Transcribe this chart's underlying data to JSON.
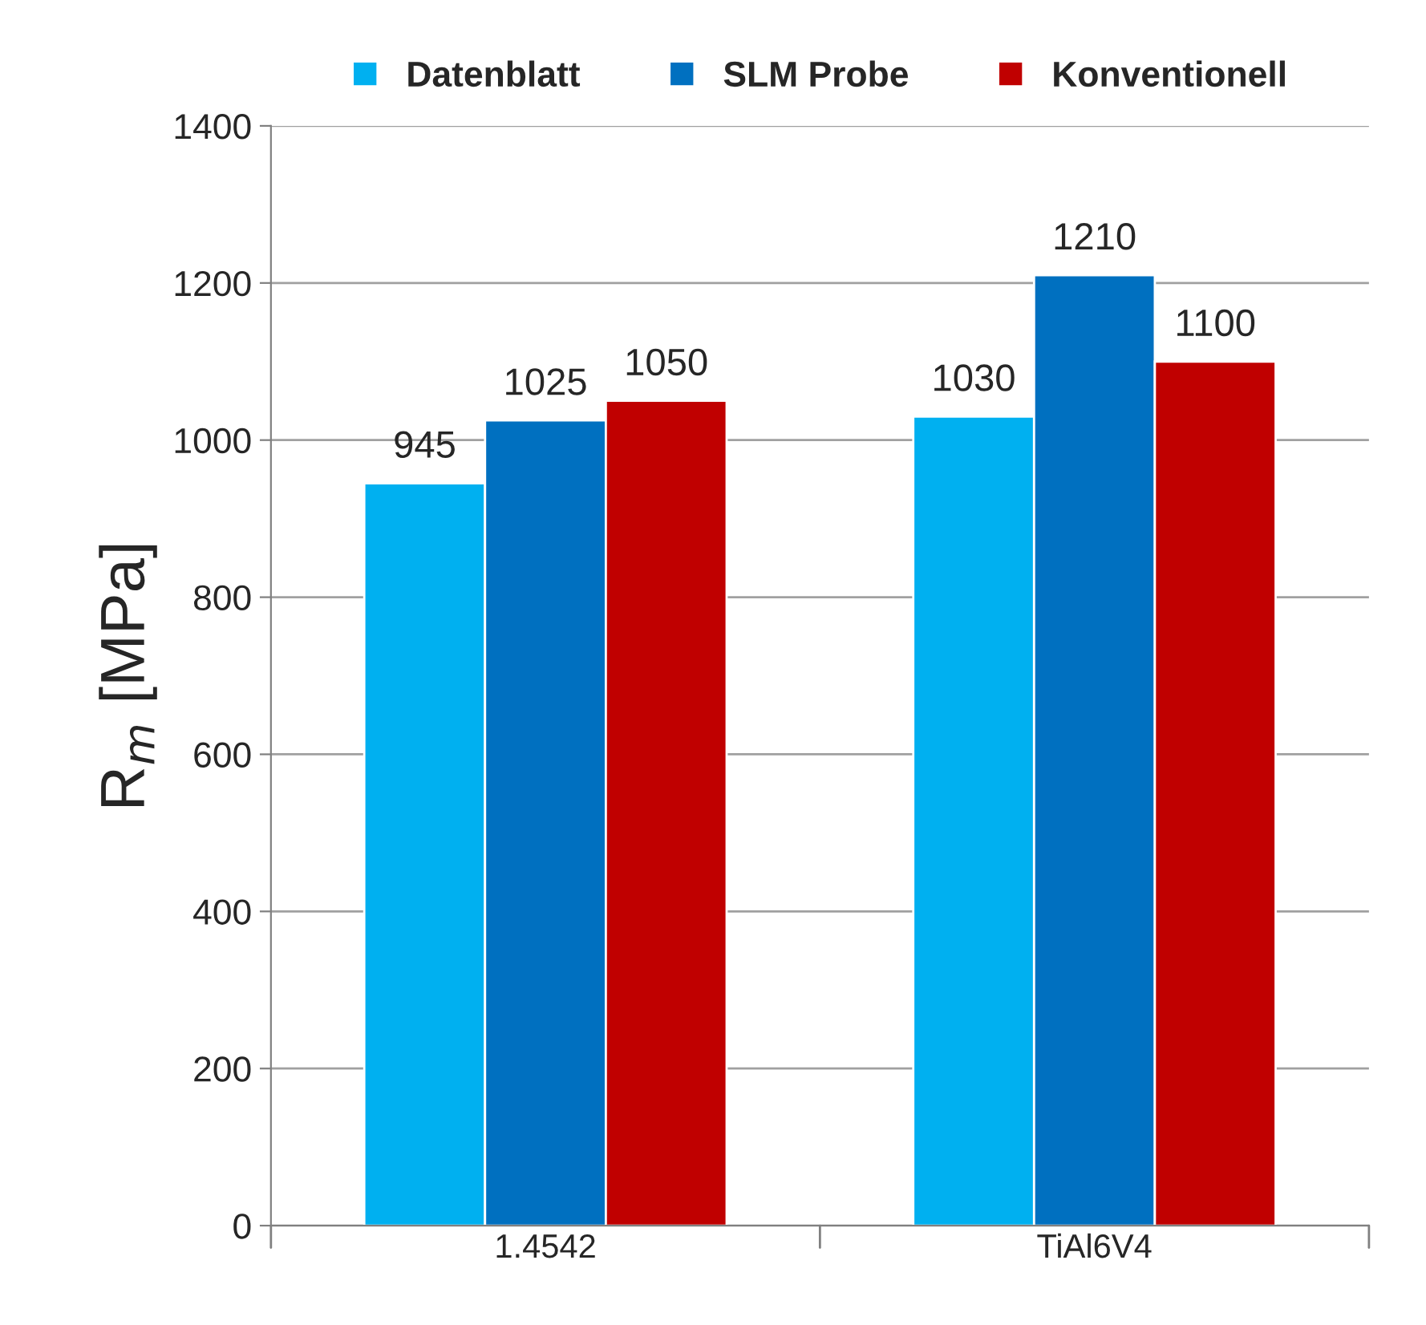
{
  "chart_data": {
    "type": "bar",
    "categories": [
      "1.4542",
      "TiAl6V4"
    ],
    "series": [
      {
        "name": "Datenblatt",
        "color": "#00b0f0",
        "values": [
          945,
          1030
        ]
      },
      {
        "name": "SLM Probe",
        "color": "#0070c0",
        "values": [
          1025,
          1210
        ]
      },
      {
        "name": "Konventionell",
        "color": "#c00000",
        "values": [
          1050,
          1100
        ]
      }
    ],
    "ylabel": "R$_{m}$ [MPa]",
    "ylim": [
      0,
      1400
    ],
    "yticks": [
      0,
      200,
      400,
      600,
      800,
      1000,
      1200,
      1400
    ],
    "grid": "y",
    "legend": "top",
    "data_labels": true
  }
}
